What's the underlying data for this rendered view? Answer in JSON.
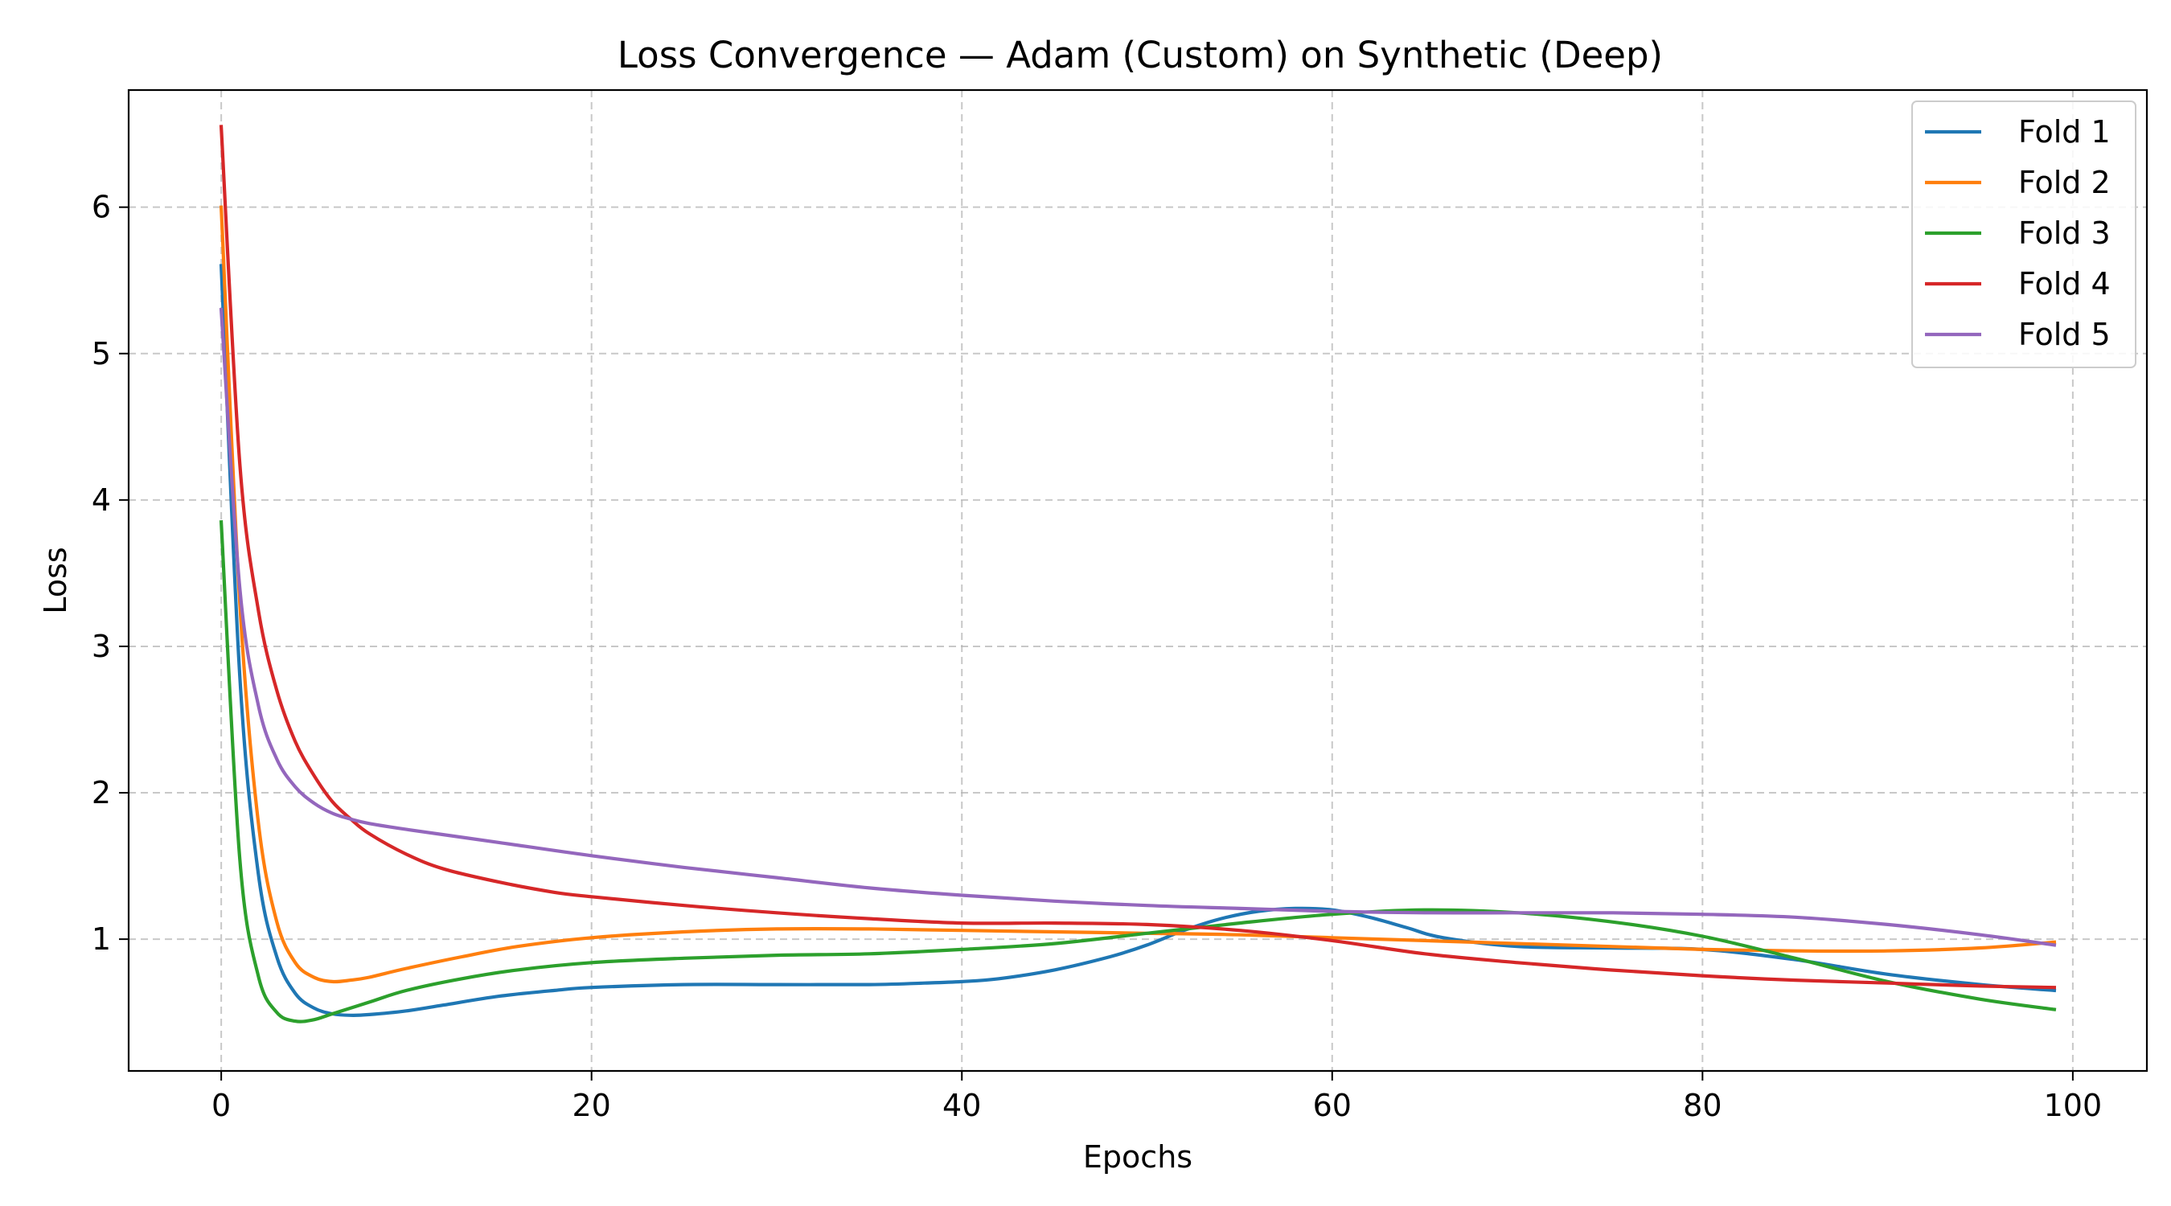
{
  "chart_data": {
    "type": "line",
    "title": "Loss Convergence — Adam (Custom) on Synthetic (Deep)",
    "xlabel": "Epochs",
    "ylabel": "Loss",
    "xlim": [
      -5,
      104
    ],
    "ylim": [
      0.1,
      6.8
    ],
    "xticks": [
      0,
      20,
      40,
      60,
      80,
      100
    ],
    "yticks": [
      1,
      2,
      3,
      4,
      5,
      6
    ],
    "grid": true,
    "legend_position": "top-right",
    "series": [
      {
        "name": "Fold 1",
        "color": "#1f77b4",
        "points": [
          [
            0,
            5.6
          ],
          [
            1,
            2.8
          ],
          [
            2,
            1.45
          ],
          [
            3,
            0.88
          ],
          [
            4,
            0.63
          ],
          [
            5,
            0.53
          ],
          [
            6,
            0.49
          ],
          [
            7,
            0.48
          ],
          [
            8,
            0.485
          ],
          [
            10,
            0.51
          ],
          [
            12,
            0.55
          ],
          [
            15,
            0.61
          ],
          [
            18,
            0.65
          ],
          [
            20,
            0.67
          ],
          [
            25,
            0.69
          ],
          [
            30,
            0.69
          ],
          [
            35,
            0.69
          ],
          [
            38,
            0.7
          ],
          [
            40,
            0.71
          ],
          [
            42,
            0.73
          ],
          [
            45,
            0.79
          ],
          [
            48,
            0.88
          ],
          [
            50,
            0.96
          ],
          [
            52,
            1.06
          ],
          [
            54,
            1.14
          ],
          [
            56,
            1.19
          ],
          [
            58,
            1.21
          ],
          [
            60,
            1.2
          ],
          [
            62,
            1.15
          ],
          [
            64,
            1.08
          ],
          [
            66,
            1.01
          ],
          [
            70,
            0.95
          ],
          [
            75,
            0.94
          ],
          [
            80,
            0.93
          ],
          [
            85,
            0.86
          ],
          [
            90,
            0.76
          ],
          [
            95,
            0.69
          ],
          [
            99,
            0.65
          ]
        ]
      },
      {
        "name": "Fold 2",
        "color": "#ff7f0e",
        "points": [
          [
            0,
            6.0
          ],
          [
            1,
            3.3
          ],
          [
            2,
            1.8
          ],
          [
            3,
            1.12
          ],
          [
            4,
            0.84
          ],
          [
            5,
            0.74
          ],
          [
            6,
            0.71
          ],
          [
            7,
            0.72
          ],
          [
            8,
            0.74
          ],
          [
            10,
            0.8
          ],
          [
            13,
            0.88
          ],
          [
            16,
            0.95
          ],
          [
            20,
            1.01
          ],
          [
            25,
            1.05
          ],
          [
            30,
            1.07
          ],
          [
            35,
            1.07
          ],
          [
            40,
            1.06
          ],
          [
            45,
            1.05
          ],
          [
            50,
            1.04
          ],
          [
            55,
            1.03
          ],
          [
            60,
            1.01
          ],
          [
            65,
            0.99
          ],
          [
            70,
            0.97
          ],
          [
            75,
            0.95
          ],
          [
            80,
            0.93
          ],
          [
            85,
            0.92
          ],
          [
            90,
            0.92
          ],
          [
            95,
            0.94
          ],
          [
            99,
            0.98
          ]
        ]
      },
      {
        "name": "Fold 3",
        "color": "#2ca02c",
        "points": [
          [
            0,
            3.85
          ],
          [
            1,
            1.55
          ],
          [
            2,
            0.75
          ],
          [
            3,
            0.5
          ],
          [
            4,
            0.44
          ],
          [
            5,
            0.45
          ],
          [
            6,
            0.49
          ],
          [
            8,
            0.57
          ],
          [
            10,
            0.65
          ],
          [
            13,
            0.73
          ],
          [
            16,
            0.79
          ],
          [
            20,
            0.84
          ],
          [
            25,
            0.87
          ],
          [
            30,
            0.89
          ],
          [
            35,
            0.9
          ],
          [
            40,
            0.93
          ],
          [
            45,
            0.97
          ],
          [
            50,
            1.04
          ],
          [
            55,
            1.11
          ],
          [
            60,
            1.17
          ],
          [
            65,
            1.2
          ],
          [
            70,
            1.18
          ],
          [
            75,
            1.12
          ],
          [
            80,
            1.02
          ],
          [
            85,
            0.87
          ],
          [
            90,
            0.71
          ],
          [
            95,
            0.59
          ],
          [
            99,
            0.52
          ]
        ]
      },
      {
        "name": "Fold 4",
        "color": "#d62728",
        "points": [
          [
            0,
            6.55
          ],
          [
            1,
            4.25
          ],
          [
            2,
            3.25
          ],
          [
            3,
            2.7
          ],
          [
            4,
            2.35
          ],
          [
            5,
            2.12
          ],
          [
            6,
            1.94
          ],
          [
            7,
            1.82
          ],
          [
            8,
            1.72
          ],
          [
            10,
            1.58
          ],
          [
            12,
            1.48
          ],
          [
            15,
            1.39
          ],
          [
            18,
            1.32
          ],
          [
            20,
            1.29
          ],
          [
            25,
            1.23
          ],
          [
            30,
            1.18
          ],
          [
            35,
            1.14
          ],
          [
            40,
            1.11
          ],
          [
            45,
            1.11
          ],
          [
            50,
            1.1
          ],
          [
            55,
            1.06
          ],
          [
            60,
            0.99
          ],
          [
            65,
            0.9
          ],
          [
            70,
            0.84
          ],
          [
            75,
            0.79
          ],
          [
            80,
            0.75
          ],
          [
            85,
            0.72
          ],
          [
            90,
            0.7
          ],
          [
            95,
            0.68
          ],
          [
            99,
            0.67
          ]
        ]
      },
      {
        "name": "Fold 5",
        "color": "#9467bd",
        "points": [
          [
            0,
            5.3
          ],
          [
            1,
            3.4
          ],
          [
            2,
            2.6
          ],
          [
            3,
            2.23
          ],
          [
            4,
            2.04
          ],
          [
            5,
            1.93
          ],
          [
            6,
            1.86
          ],
          [
            7,
            1.82
          ],
          [
            8,
            1.79
          ],
          [
            10,
            1.75
          ],
          [
            15,
            1.66
          ],
          [
            20,
            1.57
          ],
          [
            25,
            1.49
          ],
          [
            30,
            1.42
          ],
          [
            35,
            1.35
          ],
          [
            40,
            1.3
          ],
          [
            45,
            1.26
          ],
          [
            50,
            1.23
          ],
          [
            55,
            1.21
          ],
          [
            60,
            1.19
          ],
          [
            65,
            1.18
          ],
          [
            70,
            1.18
          ],
          [
            75,
            1.18
          ],
          [
            80,
            1.17
          ],
          [
            85,
            1.15
          ],
          [
            90,
            1.1
          ],
          [
            95,
            1.03
          ],
          [
            99,
            0.96
          ]
        ]
      }
    ]
  }
}
